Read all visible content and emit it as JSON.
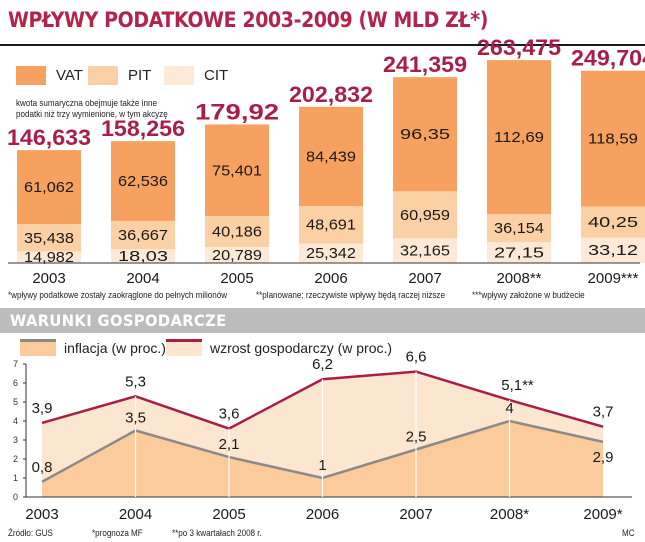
{
  "title": "WPŁYWY PODATKOWE 2003-2009 (W MLD ZŁ*)",
  "note": "kwota sumaryczna obejmuje także inne podatki niż trzy wymienione, w tym akcyzę",
  "colors": {
    "vat": "#f6a15f",
    "pit": "#fbd0a4",
    "cit": "#fde9d6",
    "total": "#a91e47",
    "growth_line": "#a91e47",
    "inflation_line": "#8a8a8a",
    "inflation_area": "#fccb9b",
    "growth_area": "#fde6d0",
    "band": "#bcbcbc"
  },
  "chart_data": [
    {
      "type": "bar",
      "title": "WPŁYWY PODATKOWE 2003-2009 (W MLD ZŁ*)",
      "categories": [
        "2003",
        "2004",
        "2005",
        "2006",
        "2007",
        "2008**",
        "2009***"
      ],
      "series": [
        {
          "name": "VAT",
          "values": [
            "61,062",
            "62,536",
            "75,401",
            "84,439",
            "96,35",
            "112,69",
            "118,59"
          ]
        },
        {
          "name": "PIT",
          "values": [
            "35,438",
            "36,667",
            "40,186",
            "48,691",
            "60,959",
            "36,154",
            "40,25"
          ]
        },
        {
          "name": "CIT",
          "values": [
            "14,982",
            "18,03",
            "20,789",
            "25,342",
            "32,165",
            "27,15",
            "33,12"
          ]
        }
      ],
      "totals": [
        "146,633",
        "158,256",
        "179,92",
        "202,832",
        "241,359",
        "263,475",
        "249,704"
      ],
      "legend_position": "top-left",
      "footnotes": [
        "*wpływy podatkowe zostały zaokrąglone do pełnych milionów",
        "**planowane; rzeczywiste wpływy będą raczej niższe",
        "***wpływy założone w budżecie"
      ]
    },
    {
      "type": "line",
      "title": "WARUNKI GOSPODARCZE",
      "x": [
        "2003",
        "2004",
        "2005",
        "2006",
        "2007",
        "2008*",
        "2009*"
      ],
      "series": [
        {
          "name": "inflacja (w proc.)",
          "values": [
            0.8,
            3.5,
            2.1,
            1,
            2.5,
            4,
            2.9
          ],
          "labels": [
            "0,8",
            "3,5",
            "2,1",
            "1",
            "2,5",
            "4",
            "2,9"
          ]
        },
        {
          "name": "wzrost gospodarczy (w proc.)",
          "values": [
            3.9,
            5.3,
            3.6,
            6.2,
            6.6,
            5.1,
            3.7
          ],
          "labels": [
            "3,9",
            "5,3",
            "3,6",
            "6,2",
            "6,6",
            "5,1**",
            "3,7"
          ]
        }
      ],
      "ylim": [
        0,
        7
      ],
      "yticks": [
        "0",
        "1",
        "2",
        "3",
        "4",
        "5",
        "6",
        "7"
      ],
      "grid": false,
      "footer": {
        "source": "Źródło: GUS",
        "note1": "*prognoza MF",
        "note2": "**po 3 kwartałach 2008 r.",
        "credit": "MC"
      }
    }
  ]
}
